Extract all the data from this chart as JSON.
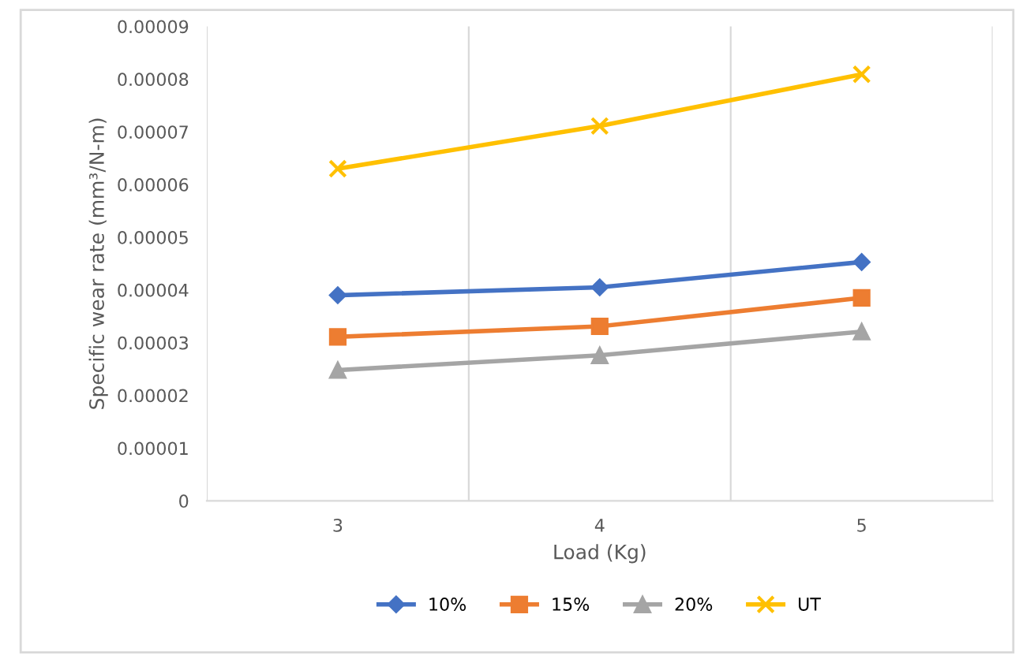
{
  "chart_data": {
    "type": "line",
    "xlabel": "Load (Kg)",
    "ylabel": "Specific wear rate (mm³/N-m)",
    "categories": [
      "3",
      "4",
      "5"
    ],
    "series": [
      {
        "name": "10%",
        "color": "#4472c4",
        "marker": "diamond",
        "values": [
          3.9e-05,
          4.05e-05,
          4.53e-05
        ]
      },
      {
        "name": "15%",
        "color": "#ed7d31",
        "marker": "square",
        "values": [
          3.11e-05,
          3.31e-05,
          3.85e-05
        ]
      },
      {
        "name": "20%",
        "color": "#a5a5a5",
        "marker": "triangle",
        "values": [
          2.48e-05,
          2.76e-05,
          3.21e-05
        ]
      },
      {
        "name": "UT",
        "color": "#ffc000",
        "marker": "cross",
        "values": [
          6.3e-05,
          7.11e-05,
          8.09e-05
        ]
      }
    ],
    "ylim": [
      0,
      9e-05
    ],
    "yticks": [
      {
        "value": 0,
        "label": "0"
      },
      {
        "value": 1e-05,
        "label": "0.00001"
      },
      {
        "value": 2e-05,
        "label": "0.00002"
      },
      {
        "value": 3e-05,
        "label": "0.00003"
      },
      {
        "value": 4e-05,
        "label": "0.00004"
      },
      {
        "value": 5e-05,
        "label": "0.00005"
      },
      {
        "value": 6e-05,
        "label": "0.00006"
      },
      {
        "value": 7e-05,
        "label": "0.00007"
      },
      {
        "value": 8e-05,
        "label": "0.00008"
      },
      {
        "value": 9e-05,
        "label": "0.00009"
      }
    ],
    "grid": "x",
    "legend": "bottom",
    "line_style": "solid"
  }
}
